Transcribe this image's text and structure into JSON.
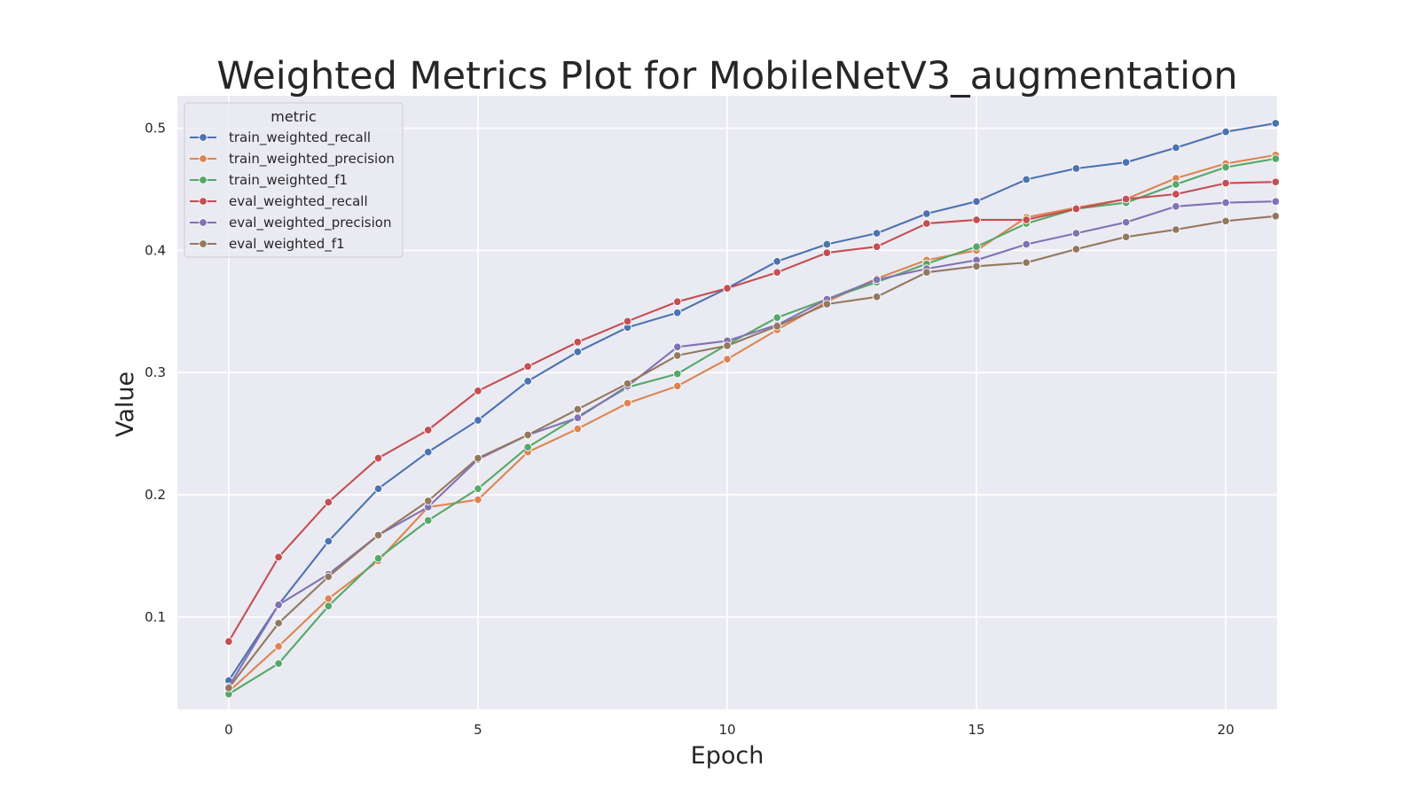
{
  "chart_data": {
    "type": "line",
    "title": "Weighted Metrics Plot for MobileNetV3_augmentation",
    "xlabel": "Epoch",
    "ylabel": "Value",
    "xlim": [
      -1.03,
      21.03
    ],
    "ylim": [
      0.0245,
      0.5265
    ],
    "xticks": [
      0,
      5,
      10,
      15,
      20
    ],
    "yticks": [
      0.1,
      0.2,
      0.3,
      0.4,
      0.5
    ],
    "grid": true,
    "background": "#eaeaf2",
    "legend": {
      "title": "metric",
      "position": "top-left"
    },
    "x": [
      0,
      1,
      2,
      3,
      4,
      5,
      6,
      7,
      8,
      9,
      10,
      11,
      12,
      13,
      14,
      15,
      16,
      17,
      18,
      19,
      20,
      21
    ],
    "series": [
      {
        "name": "train_weighted_recall",
        "color": "#4c72b0",
        "values": [
          0.048,
          0.11,
          0.162,
          0.205,
          0.235,
          0.261,
          0.293,
          0.317,
          0.337,
          0.349,
          0.369,
          0.391,
          0.405,
          0.414,
          0.43,
          0.44,
          0.458,
          0.467,
          0.472,
          0.484,
          0.497,
          0.504
        ]
      },
      {
        "name": "train_weighted_precision",
        "color": "#dd8452",
        "values": [
          0.039,
          0.076,
          0.115,
          0.146,
          0.19,
          0.196,
          0.235,
          0.254,
          0.275,
          0.289,
          0.311,
          0.335,
          0.358,
          0.377,
          0.392,
          0.4,
          0.427,
          0.435,
          0.442,
          0.459,
          0.471,
          0.478
        ]
      },
      {
        "name": "train_weighted_f1",
        "color": "#55a868",
        "values": [
          0.037,
          0.062,
          0.109,
          0.148,
          0.179,
          0.205,
          0.239,
          0.264,
          0.288,
          0.299,
          0.323,
          0.345,
          0.36,
          0.374,
          0.389,
          0.403,
          0.422,
          0.434,
          0.439,
          0.454,
          0.468,
          0.475
        ]
      },
      {
        "name": "eval_weighted_recall",
        "color": "#c44e52",
        "values": [
          0.08,
          0.149,
          0.194,
          0.23,
          0.253,
          0.285,
          0.305,
          0.325,
          0.342,
          0.358,
          0.369,
          0.382,
          0.398,
          0.403,
          0.422,
          0.425,
          0.425,
          0.434,
          0.442,
          0.446,
          0.455,
          0.456
        ]
      },
      {
        "name": "eval_weighted_precision",
        "color": "#8172b3",
        "values": [
          0.043,
          0.11,
          0.135,
          0.167,
          0.19,
          0.229,
          0.249,
          0.263,
          0.289,
          0.321,
          0.326,
          0.339,
          0.36,
          0.376,
          0.385,
          0.392,
          0.405,
          0.414,
          0.423,
          0.436,
          0.439,
          0.44
        ]
      },
      {
        "name": "eval_weighted_f1",
        "color": "#937860",
        "values": [
          0.042,
          0.095,
          0.133,
          0.167,
          0.195,
          0.23,
          0.249,
          0.27,
          0.291,
          0.314,
          0.322,
          0.338,
          0.356,
          0.362,
          0.382,
          0.387,
          0.39,
          0.401,
          0.411,
          0.417,
          0.424,
          0.428
        ]
      }
    ]
  }
}
